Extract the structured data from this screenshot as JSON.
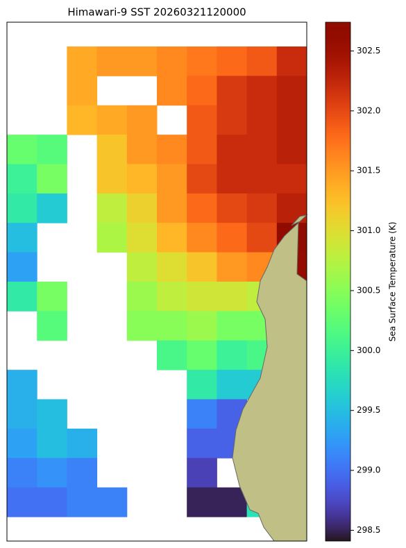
{
  "chart_data": {
    "type": "heatmap",
    "title": "Himawari-9 SST 20260321120000",
    "colormap": "turbo",
    "values": [
      [
        null,
        null,
        301.4,
        301.5,
        301.5,
        301.6,
        301.7,
        301.8,
        301.9,
        302.2
      ],
      [
        null,
        null,
        301.4,
        null,
        null,
        301.6,
        301.8,
        302.1,
        302.2,
        302.3
      ],
      [
        null,
        null,
        301.3,
        301.4,
        301.5,
        null,
        301.9,
        302.1,
        302.2,
        302.3
      ],
      [
        300.3,
        300.2,
        null,
        301.2,
        301.5,
        301.6,
        301.9,
        302.2,
        302.2,
        302.3
      ],
      [
        300.0,
        300.4,
        null,
        301.2,
        301.3,
        301.5,
        302.0,
        302.2,
        302.2,
        302.2
      ],
      [
        299.9,
        299.6,
        null,
        300.8,
        301.1,
        301.5,
        301.8,
        302.0,
        302.1,
        302.3
      ],
      [
        299.5,
        null,
        null,
        300.7,
        301.0,
        301.3,
        301.6,
        301.8,
        302.0,
        302.7
      ],
      [
        299.3,
        null,
        null,
        null,
        300.8,
        301.0,
        301.2,
        301.5,
        301.6,
        302.6
      ],
      [
        299.9,
        300.4,
        null,
        null,
        300.6,
        300.8,
        300.9,
        300.9,
        300.8,
        null
      ],
      [
        null,
        300.2,
        null,
        null,
        300.5,
        300.5,
        300.6,
        300.4,
        300.4,
        null
      ],
      [
        null,
        null,
        null,
        null,
        null,
        300.1,
        300.3,
        300.0,
        300.1,
        null
      ],
      [
        299.4,
        null,
        null,
        null,
        null,
        null,
        299.9,
        299.6,
        299.6,
        null
      ],
      [
        299.4,
        299.5,
        null,
        null,
        null,
        null,
        299.1,
        298.9,
        null,
        null
      ],
      [
        299.3,
        299.5,
        299.4,
        null,
        null,
        null,
        298.9,
        298.9,
        null,
        null
      ],
      [
        299.1,
        299.2,
        299.1,
        null,
        null,
        null,
        298.7,
        null,
        null,
        null
      ],
      [
        299.0,
        299.0,
        299.1,
        299.1,
        null,
        null,
        298.5,
        298.5,
        299.8,
        null
      ]
    ],
    "colorbar": {
      "label": "Sea Surface Temperature (K)",
      "lim": [
        298.41,
        302.74
      ],
      "ticks": [
        298.5,
        {
          "value": 299,
          "label": "299.0"
        },
        299.5,
        {
          "value": 300,
          "label": "300.0"
        },
        300.5,
        {
          "value": 301,
          "label": "301.0"
        },
        301.5,
        {
          "value": 302,
          "label": "302.0"
        },
        302.5
      ]
    }
  }
}
